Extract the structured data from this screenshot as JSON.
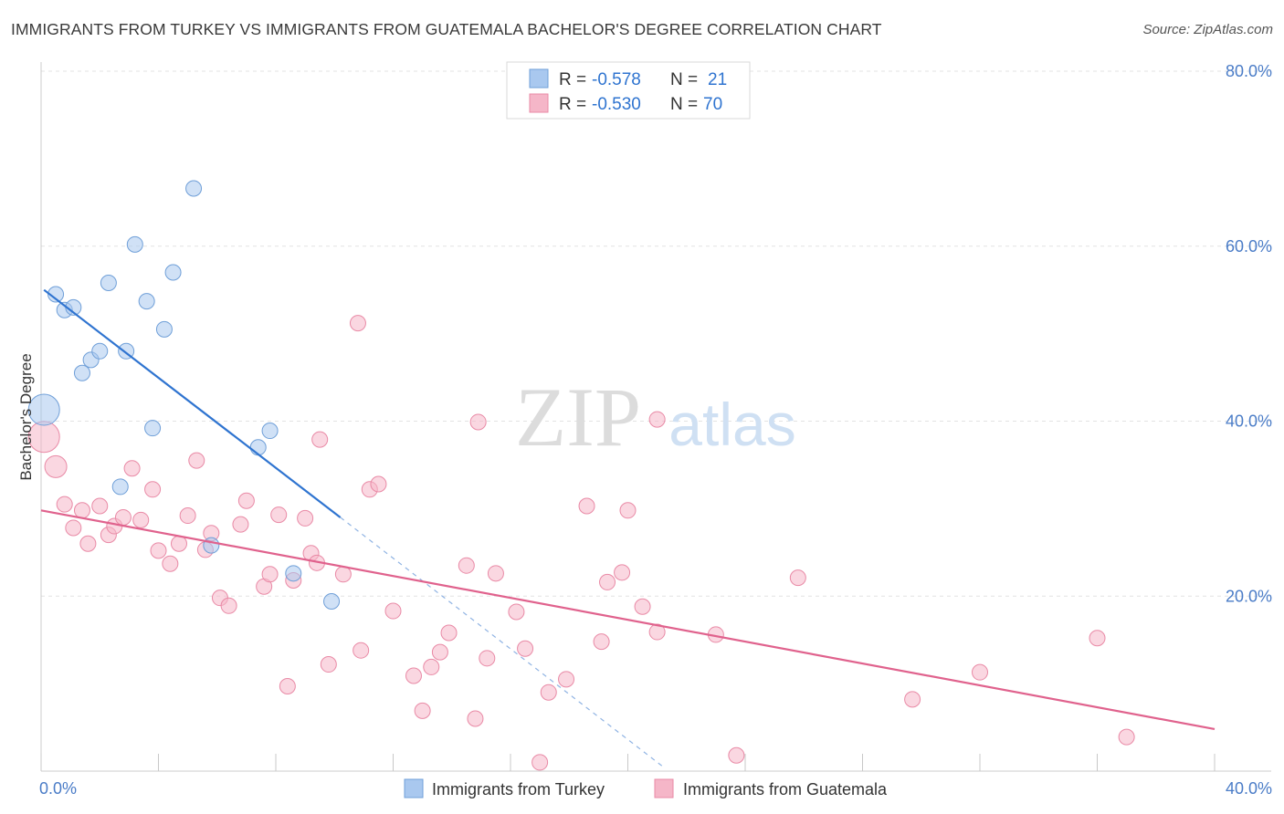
{
  "header": {
    "title": "IMMIGRANTS FROM TURKEY VS IMMIGRANTS FROM GUATEMALA BACHELOR'S DEGREE CORRELATION CHART",
    "source": "Source: ZipAtlas.com"
  },
  "watermark": {
    "zip": "ZIP",
    "atlas": "atlas"
  },
  "stats_box": {
    "rows": [
      {
        "r_label": "R =",
        "r_value": "-0.578",
        "n_label": "N =",
        "n_value": "21",
        "color": "#a9c8ef"
      },
      {
        "r_label": "R =",
        "r_value": "-0.530",
        "n_label": "N =",
        "n_value": "70",
        "color": "#f5b6c8"
      }
    ]
  },
  "chart_data": {
    "type": "scatter",
    "title": "IMMIGRANTS FROM TURKEY VS IMMIGRANTS FROM GUATEMALA BACHELOR'S DEGREE CORRELATION CHART",
    "xlabel": "",
    "ylabel": "Bachelor's Degree",
    "xlim": [
      0,
      40
    ],
    "ylim": [
      0,
      80
    ],
    "x_tick_labels": [
      "0.0%",
      "40.0%"
    ],
    "y_tick_labels": [
      "20.0%",
      "40.0%",
      "60.0%",
      "80.0%"
    ],
    "y_ticks": [
      20,
      40,
      60,
      80
    ],
    "grid": true,
    "legend_position": "bottom-center",
    "series": [
      {
        "name": "Immigrants from Turkey",
        "color": "#a9c8ef",
        "edge_color": "#6f9fd8",
        "line_color": "#2f74d0",
        "trend": {
          "x0": 0.1,
          "y0": 55.0,
          "x1": 10.2,
          "y1": 29.0,
          "dash_to_x": 21.2,
          "dash_to_y": 0.5
        },
        "points": [
          [
            0.5,
            54.5
          ],
          [
            0.8,
            52.7
          ],
          [
            1.1,
            53.0
          ],
          [
            1.4,
            45.5
          ],
          [
            1.7,
            47.0
          ],
          [
            2.0,
            48.0
          ],
          [
            2.3,
            55.8
          ],
          [
            2.7,
            32.5
          ],
          [
            2.9,
            48.0
          ],
          [
            3.2,
            60.2
          ],
          [
            3.6,
            53.7
          ],
          [
            3.8,
            39.2
          ],
          [
            4.2,
            50.5
          ],
          [
            4.5,
            57.0
          ],
          [
            5.2,
            66.6
          ],
          [
            5.8,
            25.8
          ],
          [
            7.4,
            37.0
          ],
          [
            7.8,
            38.9
          ],
          [
            8.6,
            22.6
          ],
          [
            9.9,
            19.4
          ],
          [
            0.1,
            41.3
          ]
        ],
        "sizes": [
          1,
          1,
          1,
          1,
          1,
          1,
          1,
          1,
          1,
          1,
          1,
          1,
          1,
          1,
          1,
          1,
          1,
          1,
          1,
          1,
          3
        ]
      },
      {
        "name": "Immigrants from Guatemala",
        "color": "#f5b6c8",
        "edge_color": "#e98aa6",
        "line_color": "#e0628d",
        "trend": {
          "x0": 0.0,
          "y0": 29.8,
          "x1": 40.0,
          "y1": 4.8
        },
        "points": [
          [
            0.1,
            38.2
          ],
          [
            0.5,
            34.8
          ],
          [
            0.8,
            30.5
          ],
          [
            1.1,
            27.8
          ],
          [
            1.4,
            29.8
          ],
          [
            1.6,
            26.0
          ],
          [
            2.0,
            30.3
          ],
          [
            2.3,
            27.0
          ],
          [
            2.5,
            28.0
          ],
          [
            2.8,
            29.0
          ],
          [
            3.1,
            34.6
          ],
          [
            3.4,
            28.7
          ],
          [
            3.8,
            32.2
          ],
          [
            4.0,
            25.2
          ],
          [
            4.4,
            23.7
          ],
          [
            4.7,
            26.0
          ],
          [
            5.0,
            29.2
          ],
          [
            5.3,
            35.5
          ],
          [
            5.6,
            25.3
          ],
          [
            5.8,
            27.2
          ],
          [
            6.1,
            19.8
          ],
          [
            6.4,
            18.9
          ],
          [
            6.8,
            28.2
          ],
          [
            7.0,
            30.9
          ],
          [
            7.6,
            21.1
          ],
          [
            7.8,
            22.5
          ],
          [
            8.1,
            29.3
          ],
          [
            8.4,
            9.7
          ],
          [
            8.6,
            21.8
          ],
          [
            9.0,
            28.9
          ],
          [
            9.2,
            24.9
          ],
          [
            9.4,
            23.8
          ],
          [
            10.3,
            22.5
          ],
          [
            9.5,
            37.9
          ],
          [
            9.8,
            12.2
          ],
          [
            10.8,
            51.2
          ],
          [
            10.9,
            13.8
          ],
          [
            11.2,
            32.2
          ],
          [
            11.5,
            32.8
          ],
          [
            12.0,
            18.3
          ],
          [
            12.7,
            10.9
          ],
          [
            13.0,
            6.9
          ],
          [
            13.3,
            11.9
          ],
          [
            13.6,
            13.6
          ],
          [
            13.9,
            15.8
          ],
          [
            14.5,
            23.5
          ],
          [
            14.8,
            6.0
          ],
          [
            14.9,
            39.9
          ],
          [
            15.2,
            12.9
          ],
          [
            15.5,
            22.6
          ],
          [
            16.2,
            18.2
          ],
          [
            16.5,
            14.0
          ],
          [
            17.0,
            1.0
          ],
          [
            17.3,
            9.0
          ],
          [
            17.9,
            10.5
          ],
          [
            18.6,
            30.3
          ],
          [
            19.3,
            21.6
          ],
          [
            19.1,
            14.8
          ],
          [
            19.8,
            22.7
          ],
          [
            20.0,
            29.8
          ],
          [
            20.5,
            18.8
          ],
          [
            21.0,
            15.9
          ],
          [
            21.0,
            40.2
          ],
          [
            23.0,
            15.6
          ],
          [
            23.7,
            1.8
          ],
          [
            25.8,
            22.1
          ],
          [
            29.7,
            8.2
          ],
          [
            32.0,
            11.3
          ],
          [
            36.0,
            15.2
          ],
          [
            37.0,
            3.9
          ]
        ],
        "sizes": [
          3,
          2,
          1,
          1,
          1,
          1,
          1,
          1,
          1,
          1,
          1,
          1,
          1,
          1,
          1,
          1,
          1,
          1,
          1,
          1,
          1,
          1,
          1,
          1,
          1,
          1,
          1,
          1,
          1,
          1,
          1,
          1,
          1,
          1,
          1,
          1,
          1,
          1,
          1,
          1,
          1,
          1,
          1,
          1,
          1,
          1,
          1,
          1,
          1,
          1,
          1,
          1,
          1,
          1,
          1,
          1,
          1,
          1,
          1,
          1,
          1,
          1,
          1,
          1,
          1,
          1,
          1,
          1,
          1,
          1
        ]
      }
    ]
  }
}
